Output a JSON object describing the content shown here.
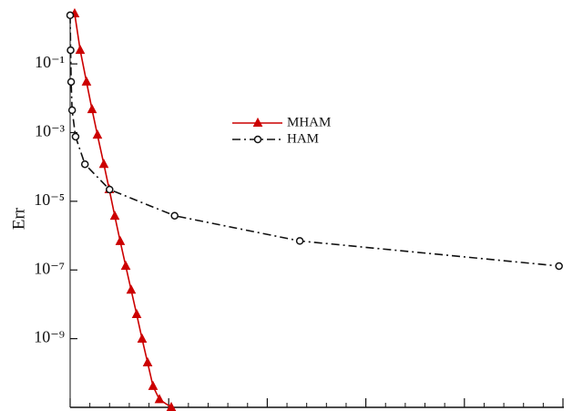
{
  "chart_data": {
    "type": "line",
    "y_label": "Err",
    "yscale": "log",
    "xlim": [
      0,
      50
    ],
    "xticks": [
      0,
      10,
      20,
      30,
      40,
      50
    ],
    "ylim": [
      1e-11,
      2.9
    ],
    "yticks": [
      {
        "value": 0.1,
        "label": "10⁻¹"
      },
      {
        "value": 0.001,
        "label": "10⁻³"
      },
      {
        "value": 1e-05,
        "label": "10⁻⁵"
      },
      {
        "value": 1e-07,
        "label": "10⁻⁷"
      },
      {
        "value": 1e-09,
        "label": "10⁻⁹"
      }
    ],
    "legend_position": "center",
    "series": [
      {
        "name": "MHAM",
        "color": "#cc0000",
        "marker": "triangle",
        "linestyle": "solid",
        "x": [
          0.46,
          1.02,
          1.66,
          2.22,
          2.77,
          3.42,
          3.97,
          4.53,
          5.08,
          5.64,
          6.19,
          6.75,
          7.3,
          7.86,
          8.41,
          9.06,
          10.26
        ],
        "values": [
          2.9,
          0.25,
          0.03,
          0.0047,
          0.00085,
          0.00012,
          2.2e-05,
          3.7e-06,
          6.8e-07,
          1.3e-07,
          2.6e-08,
          5.1e-09,
          9.8e-10,
          2e-10,
          4.1e-11,
          1.7e-11,
          1e-11
        ]
      },
      {
        "name": "HAM",
        "color": "#111111",
        "marker": "circle",
        "linestyle": "dashdot",
        "x": [
          0,
          0.05,
          0.1,
          0.2,
          0.55,
          1.5,
          4,
          10.6,
          23.3,
          49.6
        ],
        "values": [
          2.6,
          0.25,
          0.03,
          0.0045,
          0.00076,
          0.00012,
          2.2e-05,
          3.8e-06,
          7e-07,
          1.3e-07
        ]
      }
    ]
  }
}
